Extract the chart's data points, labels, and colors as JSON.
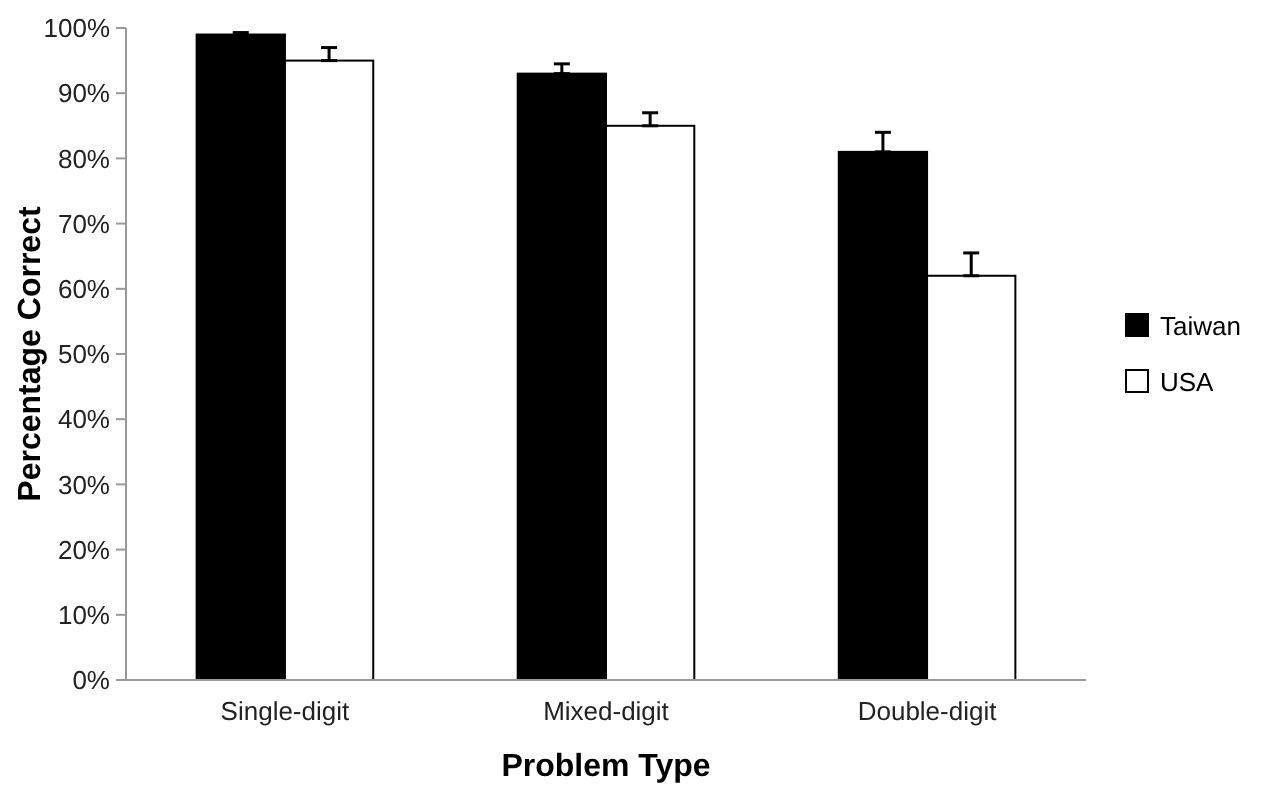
{
  "chart_data": {
    "type": "bar",
    "xlabel": "Problem Type",
    "ylabel": "Percentage Correct",
    "categories": [
      "Single-digit",
      "Mixed-digit",
      "Double-digit"
    ],
    "series": [
      {
        "name": "Taiwan",
        "color": "#000000",
        "values": [
          99,
          93,
          81
        ],
        "errors": [
          [
            99,
            99.3
          ],
          [
            93,
            94.5
          ],
          [
            81,
            84
          ]
        ]
      },
      {
        "name": "USA",
        "color": "#ffffff",
        "values": [
          95,
          85,
          62
        ],
        "errors": [
          [
            95,
            97
          ],
          [
            85,
            87
          ],
          [
            62,
            65.5
          ]
        ]
      }
    ],
    "ylim": [
      0,
      100
    ],
    "yticks": [
      {
        "value": 0,
        "label": "0%"
      },
      {
        "value": 10,
        "label": "10%"
      },
      {
        "value": 20,
        "label": "20%"
      },
      {
        "value": 30,
        "label": "30%"
      },
      {
        "value": 40,
        "label": "40%"
      },
      {
        "value": 50,
        "label": "50%"
      },
      {
        "value": 60,
        "label": "60%"
      },
      {
        "value": 70,
        "label": "70%"
      },
      {
        "value": 80,
        "label": "80%"
      },
      {
        "value": 90,
        "label": "90%"
      },
      {
        "value": 100,
        "label": "100%"
      }
    ],
    "grid": false,
    "legend": "right"
  }
}
